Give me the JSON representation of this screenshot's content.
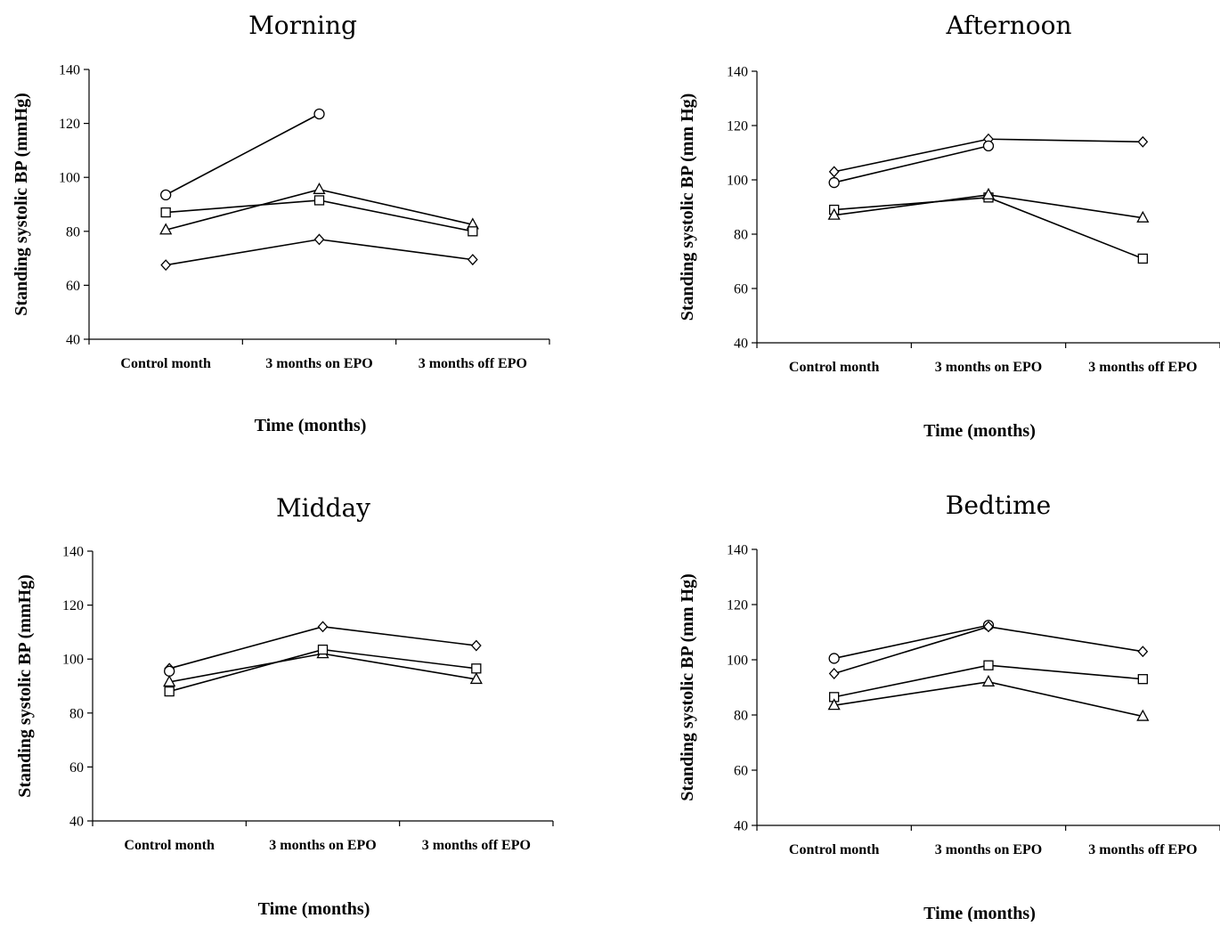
{
  "chart_data": [
    {
      "type": "line",
      "title": "Morning",
      "xlabel": "Time (months)",
      "ylabel": "Standing systolic BP (mmHg)",
      "categories": [
        "Control month",
        "3 months on EPO",
        "3 months off EPO"
      ],
      "ylim": [
        40,
        140
      ],
      "yticks": [
        40,
        60,
        80,
        100,
        120,
        140
      ],
      "grid": false,
      "series": [
        {
          "marker": "circle",
          "values": [
            93.5,
            123.5,
            null
          ]
        },
        {
          "marker": "triangle",
          "values": [
            80.5,
            95.5,
            82.5
          ]
        },
        {
          "marker": "square",
          "values": [
            87,
            91.5,
            80
          ]
        },
        {
          "marker": "diamond",
          "values": [
            67.5,
            77,
            69.5
          ]
        }
      ]
    },
    {
      "type": "line",
      "title": "Afternoon",
      "xlabel": "Time (months)",
      "ylabel": "Standing systolic BP (mm Hg)",
      "categories": [
        "Control month",
        "3 months on EPO",
        "3 months off EPO"
      ],
      "ylim": [
        40,
        140
      ],
      "yticks": [
        40,
        60,
        80,
        100,
        120,
        140
      ],
      "grid": false,
      "series": [
        {
          "marker": "diamond",
          "values": [
            103,
            115,
            114
          ]
        },
        {
          "marker": "circle",
          "values": [
            99,
            112.5,
            null
          ]
        },
        {
          "marker": "square",
          "values": [
            89,
            93.5,
            71
          ]
        },
        {
          "marker": "triangle",
          "values": [
            87,
            94.5,
            86
          ]
        }
      ]
    },
    {
      "type": "line",
      "title": "Midday",
      "xlabel": "Time (months)",
      "ylabel": "Standing systolic BP (mmHg)",
      "categories": [
        "Control month",
        "3 months on EPO",
        "3 months off EPO"
      ],
      "ylim": [
        40,
        140
      ],
      "yticks": [
        40,
        60,
        80,
        100,
        120,
        140
      ],
      "grid": false,
      "series": [
        {
          "marker": "diamond",
          "values": [
            96.5,
            112,
            105
          ]
        },
        {
          "marker": "circle",
          "values": [
            95.5,
            null,
            null
          ]
        },
        {
          "marker": "triangle",
          "values": [
            91.5,
            102,
            92.5
          ]
        },
        {
          "marker": "square",
          "values": [
            88,
            103.5,
            96.5
          ]
        }
      ]
    },
    {
      "type": "line",
      "title": "Bedtime",
      "xlabel": "Time (months)",
      "ylabel": "Standing systolic BP (mm Hg)",
      "categories": [
        "Control month",
        "3 months on EPO",
        "3 months off EPO"
      ],
      "ylim": [
        40,
        140
      ],
      "yticks": [
        40,
        60,
        80,
        100,
        120,
        140
      ],
      "grid": false,
      "series": [
        {
          "marker": "circle",
          "values": [
            100.5,
            112.5,
            null
          ]
        },
        {
          "marker": "diamond",
          "values": [
            95,
            112,
            103
          ]
        },
        {
          "marker": "square",
          "values": [
            86.5,
            98,
            93
          ]
        },
        {
          "marker": "triangle",
          "values": [
            83.5,
            92,
            79.5
          ]
        }
      ]
    }
  ]
}
